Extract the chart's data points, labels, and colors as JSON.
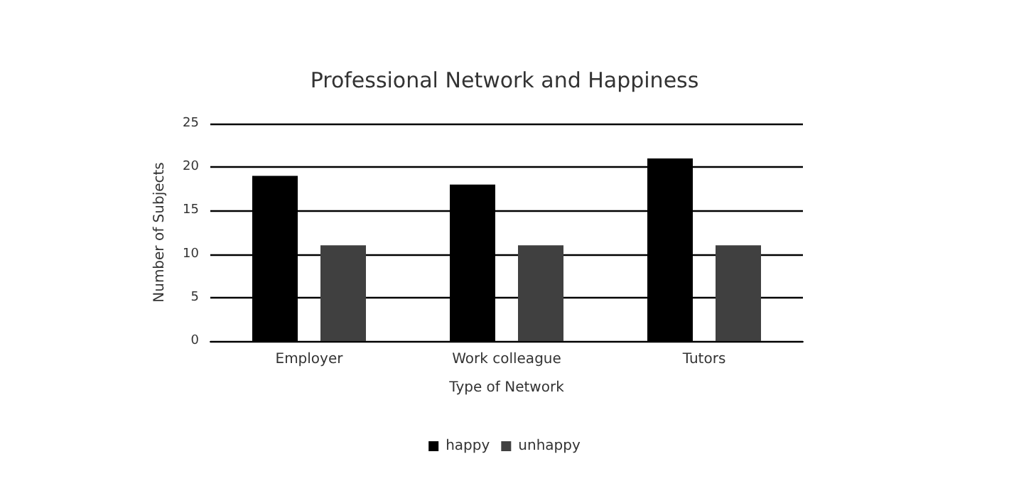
{
  "chart_data": {
    "type": "bar",
    "title": "Professional Network and Happiness",
    "xlabel": "Type of Network",
    "ylabel": "Number of Subjects",
    "categories": [
      "Employer",
      "Work colleague",
      "Tutors"
    ],
    "series": [
      {
        "name": "happy",
        "color": "#000000",
        "values": [
          19,
          18,
          21
        ]
      },
      {
        "name": "unhappy",
        "color": "#404040",
        "values": [
          11,
          11,
          11
        ]
      }
    ],
    "ylim": [
      0,
      25
    ],
    "yticks": [
      0,
      5,
      10,
      15,
      20,
      25
    ],
    "grid": "y",
    "legend": "bottom"
  }
}
